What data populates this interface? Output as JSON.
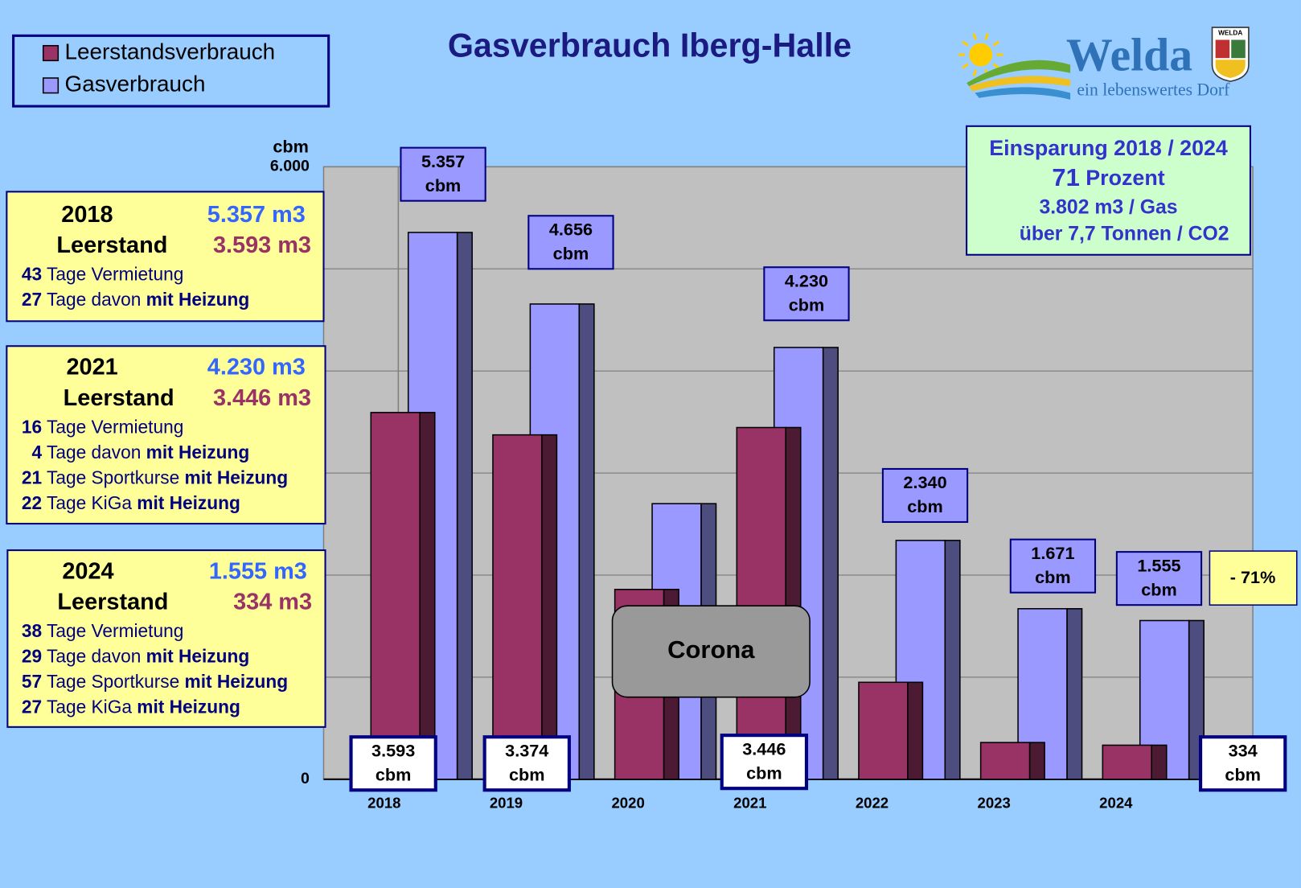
{
  "chart_data": {
    "type": "bar",
    "title": "Gasverbrauch Iberg-Halle",
    "y_unit": "cbm",
    "categories": [
      "2018",
      "2019",
      "2020",
      "2021",
      "2022",
      "2023",
      "2024"
    ],
    "series": [
      {
        "name": "Leerstandsverbrauch",
        "color": "#993366",
        "values": [
          3593,
          3374,
          1860,
          3446,
          950,
          360,
          334
        ],
        "value_labels": [
          "3.593",
          "3.374",
          null,
          "3.446",
          null,
          null,
          "334"
        ]
      },
      {
        "name": "Gasverbrauch",
        "color": "#9999ff",
        "values": [
          5357,
          4656,
          2700,
          4230,
          2340,
          1671,
          1555
        ],
        "value_labels": [
          "5.357",
          "4.656",
          null,
          "4.230",
          "2.340",
          "1.671",
          "1.555"
        ]
      }
    ],
    "ylim": [
      0,
      6000
    ],
    "yticks": [
      0,
      {
        "value": 6000,
        "label": "6.000"
      }
    ],
    "gridlines": [
      1000,
      2000,
      3000,
      4000,
      5000
    ],
    "annotation": "Corona",
    "change_label": "- 71%"
  },
  "info_boxes": [
    {
      "year": "2018",
      "total": "5.357 m3",
      "leer_label": "Leerstand",
      "leer": "3.593 m3",
      "lines": [
        [
          {
            "t": "43",
            "b": true
          },
          {
            "t": " Tage Vermietung",
            "b": false
          }
        ],
        [
          {
            "t": "27",
            "b": true
          },
          {
            "t": " Tage davon ",
            "b": false
          },
          {
            "t": "mit Heizung",
            "b": true
          }
        ]
      ]
    },
    {
      "year": "2021",
      "total": "4.230 m3",
      "leer_label": "Leerstand",
      "leer": "3.446 m3",
      "lines": [
        [
          {
            "t": "16",
            "b": true
          },
          {
            "t": " Tage Vermietung",
            "b": false
          }
        ],
        [
          {
            "t": "  4",
            "b": true
          },
          {
            "t": " Tage davon ",
            "b": false
          },
          {
            "t": "mit Heizung",
            "b": true
          }
        ],
        [
          {
            "t": "21",
            "b": true
          },
          {
            "t": " Tage Sportkurse ",
            "b": false
          },
          {
            "t": "mit Heizung",
            "b": true
          }
        ],
        [
          {
            "t": "22",
            "b": true
          },
          {
            "t": " Tage KiGa ",
            "b": false
          },
          {
            "t": "mit Heizung",
            "b": true
          }
        ]
      ]
    },
    {
      "year": "2024",
      "total": "1.555 m3",
      "leer_label": "Leerstand",
      "leer": "334 m3",
      "lines": [
        [
          {
            "t": "38",
            "b": true
          },
          {
            "t": " Tage Vermietung",
            "b": false
          }
        ],
        [
          {
            "t": "29",
            "b": true
          },
          {
            "t": " Tage davon ",
            "b": false
          },
          {
            "t": "mit Heizung",
            "b": true
          }
        ],
        [
          {
            "t": "57",
            "b": true
          },
          {
            "t": " Tage Sportkurse ",
            "b": false
          },
          {
            "t": "mit Heizung",
            "b": true
          }
        ],
        [
          {
            "t": "27",
            "b": true
          },
          {
            "t": " Tage KiGa ",
            "b": false
          },
          {
            "t": "mit Heizung",
            "b": true
          }
        ]
      ]
    }
  ],
  "savings": {
    "heading": "Einsparung 2018 / 2024",
    "percent": "71",
    "percent_text": " Prozent",
    "gas": "3.802 m3 / Gas",
    "co2": "über 7,7 Tonnen / CO2"
  },
  "logo": {
    "name": "Welda",
    "slogan": "ein lebenswertes Dorf",
    "crest": "WELDA"
  }
}
